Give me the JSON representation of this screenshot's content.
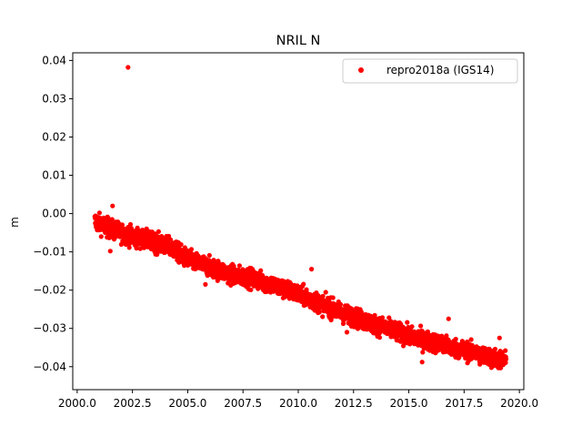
{
  "chart_data": {
    "type": "scatter",
    "title": "NRIL N",
    "xlabel": "",
    "ylabel": "m",
    "xlim": [
      1999.8,
      2020.2
    ],
    "ylim": [
      -0.046,
      0.042
    ],
    "xticks": [
      2000.0,
      2002.5,
      2005.0,
      2007.5,
      2010.0,
      2012.5,
      2015.0,
      2017.5,
      2020.0
    ],
    "xtick_labels": [
      "2000.0",
      "2002.5",
      "2005.0",
      "2007.5",
      "2010.0",
      "2012.5",
      "2015.0",
      "2017.5",
      "2020.0"
    ],
    "yticks": [
      -0.04,
      -0.03,
      -0.02,
      -0.01,
      0.0,
      0.01,
      0.02,
      0.03,
      0.04
    ],
    "ytick_labels": [
      "−0.04",
      "−0.03",
      "−0.02",
      "−0.01",
      "0.00",
      "0.01",
      "0.02",
      "0.03",
      "0.04"
    ],
    "grid": false,
    "legend_position": "top-right",
    "series": [
      {
        "name": "repro2018a (IGS14)",
        "color": "#ff0000",
        "marker": "circle",
        "trend": {
          "x": [
            2000.8,
            2001.5,
            2002.5,
            2003.5,
            2004.3,
            2005.0,
            2006.0,
            2007.0,
            2008.0,
            2009.0,
            2010.0,
            2011.0,
            2012.0,
            2013.0,
            2014.0,
            2015.0,
            2016.0,
            2017.0,
            2018.0,
            2019.0,
            2019.4
          ],
          "y": [
            -0.002,
            -0.004,
            -0.006,
            -0.0075,
            -0.009,
            -0.012,
            -0.014,
            -0.016,
            -0.017,
            -0.019,
            -0.021,
            -0.0235,
            -0.026,
            -0.028,
            -0.03,
            -0.032,
            -0.0335,
            -0.035,
            -0.0365,
            -0.038,
            -0.0385
          ],
          "spread": 0.0022
        },
        "outliers": [
          {
            "x": 2002.3,
            "y": 0.0382
          },
          {
            "x": 2001.6,
            "y": 0.002
          },
          {
            "x": 2010.6,
            "y": -0.0145
          },
          {
            "x": 2001.5,
            "y": -0.0098
          },
          {
            "x": 2005.8,
            "y": -0.0185
          },
          {
            "x": 2016.8,
            "y": -0.0275
          },
          {
            "x": 2019.1,
            "y": -0.0325
          },
          {
            "x": 2015.6,
            "y": -0.0388
          },
          {
            "x": 2012.2,
            "y": -0.031
          }
        ]
      }
    ]
  }
}
